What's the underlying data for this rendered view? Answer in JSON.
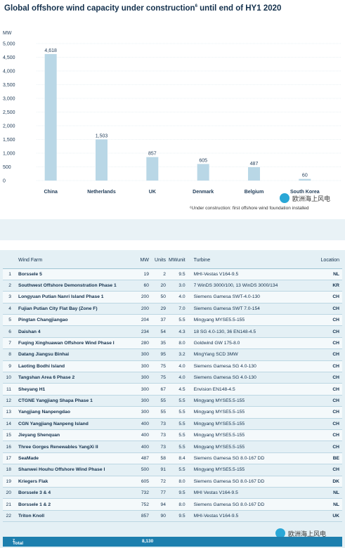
{
  "title": "Global offshore wind capacity under construction",
  "title_sup": "6",
  "title_suffix": " until end of HY1 2020",
  "footnote": "⁶Under construction: first offshore wind foundation installed",
  "chart_data": {
    "type": "bar",
    "ylabel": "MW",
    "ylim": [
      0,
      5000
    ],
    "yticks": [
      0,
      500,
      1000,
      1500,
      2000,
      2500,
      3000,
      3500,
      4000,
      4500,
      5000
    ],
    "ytick_labels": [
      "0",
      "500",
      "1,000",
      "1,500",
      "2,000",
      "2,500",
      "3,000",
      "3,500",
      "4,000",
      "4,500",
      "5,000"
    ],
    "categories": [
      "China",
      "Netherlands",
      "UK",
      "Denmark",
      "Belgium",
      "South Korea"
    ],
    "values": [
      4618,
      1503,
      857,
      605,
      487,
      60
    ],
    "value_labels": [
      "4,618",
      "1,503",
      "857",
      "605",
      "487",
      "60"
    ],
    "bar_color": "#b9d7e6"
  },
  "table": {
    "headers": {
      "farm": "Wind Farm",
      "mw": "MW",
      "units": "Units",
      "mwunit": "MWunit",
      "turbine": "Turbine",
      "location": "Location"
    },
    "rows": [
      {
        "idx": "1",
        "farm": "Borssele 5",
        "mw": "19",
        "units": "2",
        "mwunit": "9.5",
        "turbine": "MHI-Vestas V164-9.5",
        "loc": "NL"
      },
      {
        "idx": "2",
        "farm": "Southwest Offshore Demonstration Phase 1",
        "mw": "60",
        "units": "20",
        "mwunit": "3.0",
        "turbine": "7 WinDS 3000/100, 13 WinDS 3000/134",
        "loc": "KR"
      },
      {
        "idx": "3",
        "farm": "Longyuan Putian Nanri Island Phase 1",
        "mw": "200",
        "units": "50",
        "mwunit": "4.0",
        "turbine": "Siemens Gamesa SWT-4.0-130",
        "loc": "CH"
      },
      {
        "idx": "4",
        "farm": "Fujian Putian City Flat Bay (Zone F)",
        "mw": "200",
        "units": "29",
        "mwunit": "7.0",
        "turbine": "Siemens Gamesa SWT 7.0-154",
        "loc": "CH"
      },
      {
        "idx": "5",
        "farm": "Pingtan Changjiangao",
        "mw": "204",
        "units": "37",
        "mwunit": "5.5",
        "turbine": "Mingyang MYSE5.5-155",
        "loc": "CH"
      },
      {
        "idx": "6",
        "farm": "Daishan 4",
        "mw": "234",
        "units": "54",
        "mwunit": "4.3",
        "turbine": "18 SG 4.0-130, 36 EN148-4.5",
        "loc": "CH"
      },
      {
        "idx": "7",
        "farm": "Fuqing Xinghuawan Offshore Wind Phase I",
        "mw": "280",
        "units": "35",
        "mwunit": "8.0",
        "turbine": "Goldwind GW 175-8.0",
        "loc": "CH"
      },
      {
        "idx": "8",
        "farm": "Datang Jiangsu Binhai",
        "mw": "300",
        "units": "95",
        "mwunit": "3.2",
        "turbine": "MingYang SCD 3MW",
        "loc": "CH"
      },
      {
        "idx": "9",
        "farm": "Laoting Bodhi Island",
        "mw": "300",
        "units": "75",
        "mwunit": "4.0",
        "turbine": "Siemens Gamesa SG 4.0-130",
        "loc": "CH"
      },
      {
        "idx": "10",
        "farm": "Tangshan Area 6 Phase 2",
        "mw": "300",
        "units": "75",
        "mwunit": "4.0",
        "turbine": "Siemens Gamesa SG 4.0-130",
        "loc": "CH"
      },
      {
        "idx": "11",
        "farm": "Sheyang H1",
        "mw": "300",
        "units": "67",
        "mwunit": "4.5",
        "turbine": "Envision EN148-4.5",
        "loc": "CH"
      },
      {
        "idx": "12",
        "farm": "CTGNE Yangjiang Shapa Phase 1",
        "mw": "300",
        "units": "55",
        "mwunit": "5.5",
        "turbine": "Mingyang MYSE5.5-155",
        "loc": "CH"
      },
      {
        "idx": "13",
        "farm": "Yangjiang Nanpengdao",
        "mw": "300",
        "units": "55",
        "mwunit": "5.5",
        "turbine": "Mingyang MYSE5.5-155",
        "loc": "CH"
      },
      {
        "idx": "14",
        "farm": "CGN Yangjiang Nanpeng Island",
        "mw": "400",
        "units": "73",
        "mwunit": "5.5",
        "turbine": "Mingyang MYSE5.5-155",
        "loc": "CH"
      },
      {
        "idx": "15",
        "farm": "Jieyang Shenquan",
        "mw": "400",
        "units": "73",
        "mwunit": "5.5",
        "turbine": "Mingyang MYSE5.5-155",
        "loc": "CH"
      },
      {
        "idx": "16",
        "farm": "Three Gorges Renewables YangXi II",
        "mw": "400",
        "units": "73",
        "mwunit": "5.5",
        "turbine": "Mingyang MYSE5.5-155",
        "loc": "CH"
      },
      {
        "idx": "17",
        "farm": "SeaMade",
        "mw": "487",
        "units": "58",
        "mwunit": "8.4",
        "turbine": "Siemens Gamesa SG 8.0-167 DD",
        "loc": "BE"
      },
      {
        "idx": "18",
        "farm": "Shanwei Houhu Offshore Wind Phase I",
        "mw": "500",
        "units": "91",
        "mwunit": "5.5",
        "turbine": "Mingyang MYSE5.5-155",
        "loc": "CH"
      },
      {
        "idx": "19",
        "farm": "Kriegers Flak",
        "mw": "605",
        "units": "72",
        "mwunit": "8.0",
        "turbine": "Siemens Gamesa SG 8.0-167 DD",
        "loc": "DK"
      },
      {
        "idx": "20",
        "farm": "Borssele 3 & 4",
        "mw": "732",
        "units": "77",
        "mwunit": "9.5",
        "turbine": "MHI Vestas V164-9.5",
        "loc": "NL"
      },
      {
        "idx": "21",
        "farm": "Borssele 1 & 2",
        "mw": "752",
        "units": "94",
        "mwunit": "8.0",
        "turbine": "Siemens Gamesa SG 8.0-167 DD",
        "loc": "NL"
      },
      {
        "idx": "22",
        "farm": "Triton Knoll",
        "mw": "857",
        "units": "90",
        "mwunit": "9.5",
        "turbine": "MHI-Vestas V164-9.5",
        "loc": "UK"
      }
    ],
    "total_label": "Total",
    "total_sup": "7",
    "total_mw": "8,130"
  },
  "watermark": "欧洲海上风电"
}
